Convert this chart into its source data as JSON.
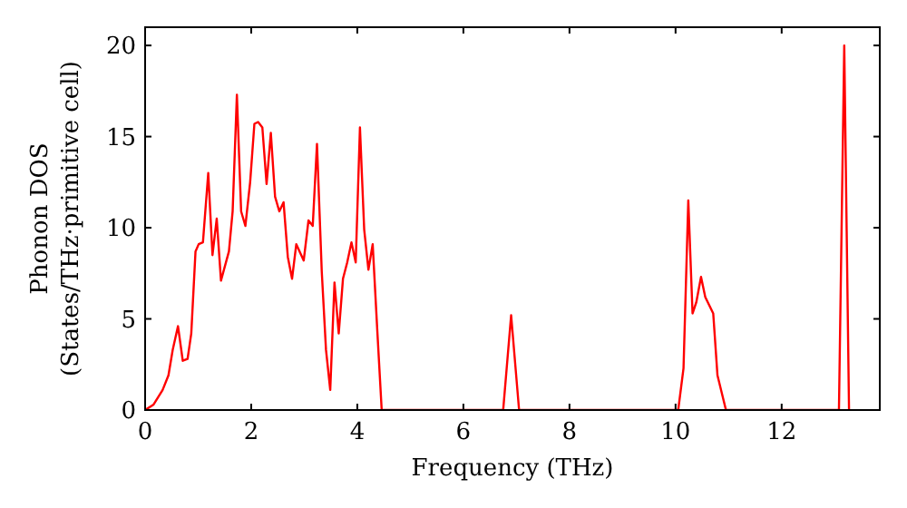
{
  "chart_data": {
    "type": "line",
    "xlabel": "Frequency (THz)",
    "ylabel": "Phonon DOS\n(States/THz·primitive cell)",
    "xlim": [
      0,
      13.85
    ],
    "ylim": [
      0,
      21
    ],
    "xticks": [
      0,
      2,
      4,
      6,
      8,
      10,
      12
    ],
    "yticks": [
      0,
      5,
      10,
      15,
      20
    ],
    "grid": false,
    "marker": "none",
    "line_style": "solid",
    "series": [
      {
        "color": "#ff0000",
        "x": [
          0,
          0.16,
          0.33,
          0.44,
          0.52,
          0.62,
          0.71,
          0.8,
          0.87,
          0.95,
          1.01,
          1.09,
          1.19,
          1.27,
          1.35,
          1.43,
          1.58,
          1.65,
          1.73,
          1.81,
          1.89,
          1.98,
          2.06,
          2.13,
          2.21,
          2.29,
          2.37,
          2.45,
          2.53,
          2.61,
          2.69,
          2.77,
          2.85,
          2.99,
          3.08,
          3.16,
          3.24,
          3.33,
          3.41,
          3.49,
          3.57,
          3.65,
          3.73,
          3.81,
          3.89,
          3.97,
          4.05,
          4.13,
          4.21,
          4.29,
          4.38,
          4.46,
          6.75,
          6.9,
          7.05,
          10.05,
          10.15,
          10.24,
          10.32,
          10.39,
          10.48,
          10.56,
          10.71,
          10.79,
          10.95,
          13.08,
          13.18,
          13.27
        ],
        "values": [
          0,
          0.3,
          1.1,
          1.9,
          3.3,
          4.6,
          2.7,
          2.8,
          4.2,
          8.7,
          9.1,
          9.2,
          13,
          8.5,
          10.5,
          7.1,
          8.7,
          10.9,
          17.3,
          10.9,
          10.1,
          12.5,
          15.7,
          15.8,
          15.5,
          12.4,
          15.2,
          11.7,
          10.9,
          11.4,
          8.4,
          7.2,
          9.1,
          8.2,
          10.4,
          10.1,
          14.6,
          7.6,
          3.3,
          1.1,
          7,
          4.2,
          7.2,
          8.1,
          9.2,
          8.1,
          15.5,
          9.9,
          7.7,
          9.1,
          4.2,
          0,
          0,
          5.2,
          0,
          0,
          2.3,
          11.5,
          5.3,
          5.9,
          7.3,
          6.2,
          5.3,
          1.9,
          0,
          0,
          20,
          0
        ]
      }
    ]
  }
}
